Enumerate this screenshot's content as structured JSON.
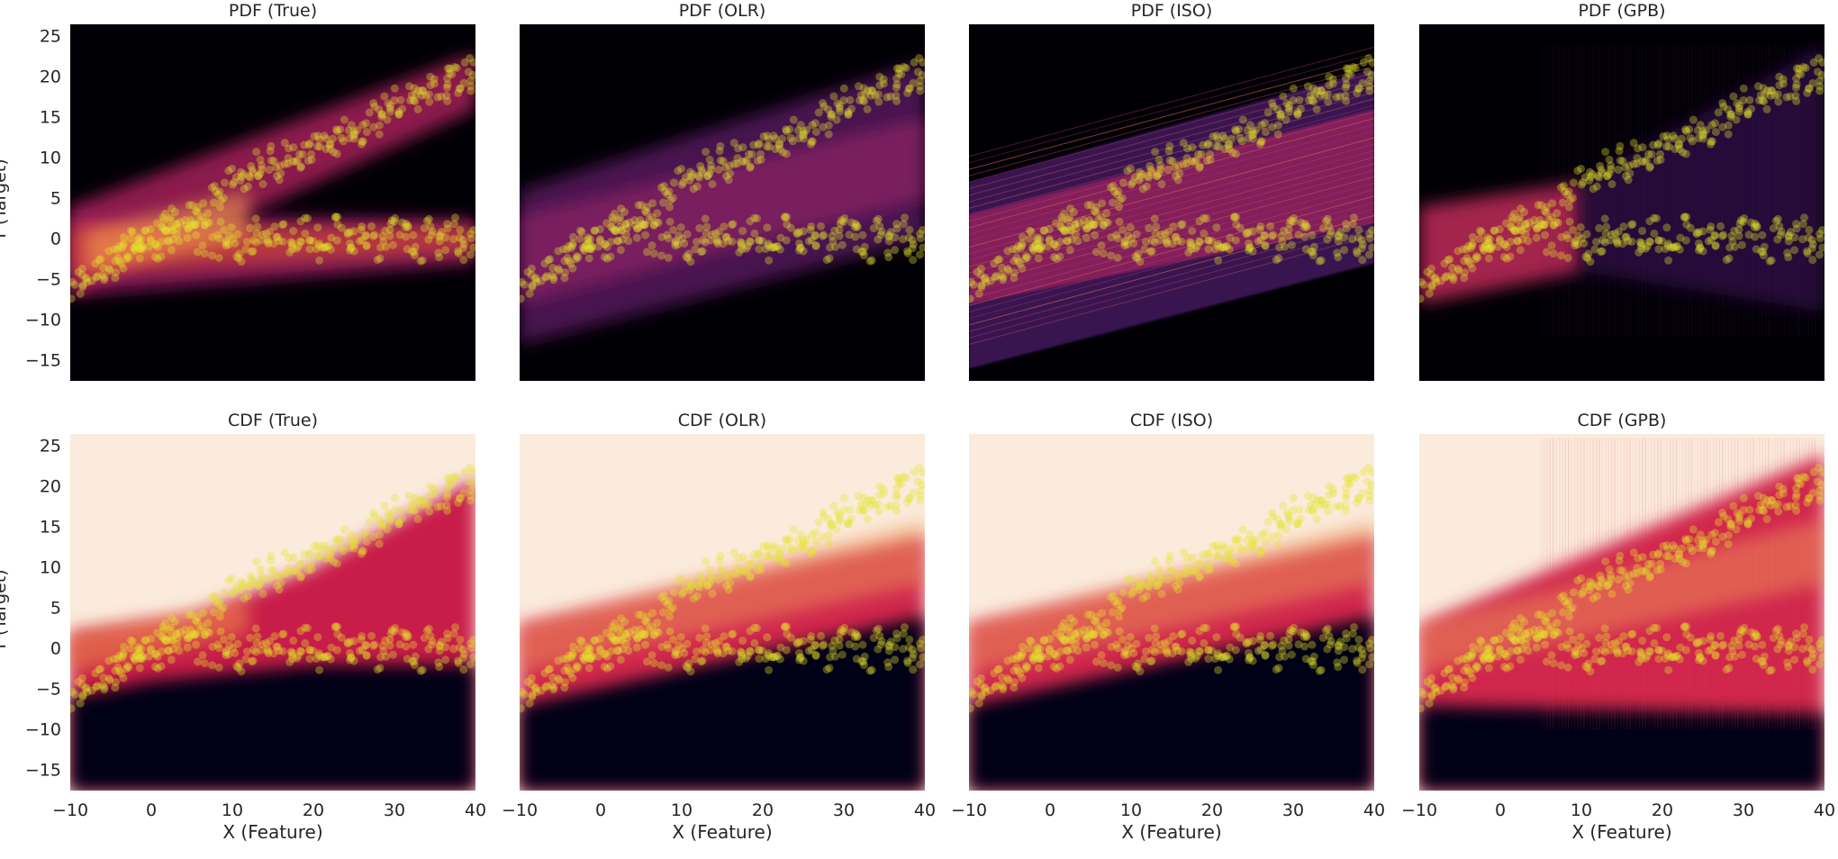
{
  "figure": {
    "xlabel": "X (Feature)",
    "ylabel": "Y (Target)"
  },
  "chart_data": [
    {
      "type": "heatmap",
      "title": "PDF (True)",
      "kind": "pdf",
      "model": "true",
      "xlabel": "",
      "ylabel": "Y (Target)",
      "xlim": [
        -10,
        40
      ],
      "ylim": [
        -17.5,
        26.5
      ],
      "xticks": [
        "",
        "",
        "",
        "",
        "",
        ""
      ],
      "yticks": [
        "25",
        "20",
        "15",
        "10",
        "5",
        "0",
        "−5",
        "−10",
        "−15"
      ],
      "colormap": "inferno",
      "grid": false
    },
    {
      "type": "heatmap",
      "title": "PDF (OLR)",
      "kind": "pdf",
      "model": "olr",
      "xlabel": "",
      "ylabel": "",
      "xlim": [
        -10,
        40
      ],
      "ylim": [
        -17.5,
        26.5
      ],
      "xticks": [
        "",
        "",
        "",
        "",
        "",
        ""
      ],
      "yticks": [],
      "colormap": "inferno",
      "grid": false
    },
    {
      "type": "heatmap",
      "title": "PDF (ISO)",
      "kind": "pdf",
      "model": "iso",
      "xlabel": "",
      "ylabel": "",
      "xlim": [
        -10,
        40
      ],
      "ylim": [
        -17.5,
        26.5
      ],
      "xticks": [
        "",
        "",
        "",
        "",
        "",
        ""
      ],
      "yticks": [],
      "colormap": "inferno",
      "grid": false
    },
    {
      "type": "heatmap",
      "title": "PDF (GPB)",
      "kind": "pdf",
      "model": "gpb",
      "xlabel": "",
      "ylabel": "",
      "xlim": [
        -10,
        40
      ],
      "ylim": [
        -17.5,
        26.5
      ],
      "xticks": [
        "",
        "",
        "",
        "",
        "",
        ""
      ],
      "yticks": [],
      "colormap": "inferno",
      "grid": false
    },
    {
      "type": "heatmap",
      "title": "CDF (True)",
      "kind": "cdf",
      "model": "true",
      "xlabel": "X (Feature)",
      "ylabel": "Y (Target)",
      "xlim": [
        -10,
        40
      ],
      "ylim": [
        -17.5,
        26.5
      ],
      "xticks": [
        "−10",
        "0",
        "10",
        "20",
        "30",
        "40"
      ],
      "yticks": [
        "25",
        "20",
        "15",
        "10",
        "5",
        "0",
        "−5",
        "−10",
        "−15"
      ],
      "colormap": "rocket",
      "grid": false
    },
    {
      "type": "heatmap",
      "title": "CDF (OLR)",
      "kind": "cdf",
      "model": "olr",
      "xlabel": "X (Feature)",
      "ylabel": "",
      "xlim": [
        -10,
        40
      ],
      "ylim": [
        -17.5,
        26.5
      ],
      "xticks": [
        "−10",
        "0",
        "10",
        "20",
        "30",
        "40"
      ],
      "yticks": [],
      "colormap": "rocket",
      "grid": false
    },
    {
      "type": "heatmap",
      "title": "CDF (ISO)",
      "kind": "cdf",
      "model": "iso",
      "xlabel": "X (Feature)",
      "ylabel": "",
      "xlim": [
        -10,
        40
      ],
      "ylim": [
        -17.5,
        26.5
      ],
      "xticks": [
        "−10",
        "0",
        "10",
        "20",
        "30",
        "40"
      ],
      "yticks": [],
      "colormap": "rocket",
      "grid": false
    },
    {
      "type": "heatmap",
      "title": "CDF (GPB)",
      "kind": "cdf",
      "model": "gpb",
      "xlabel": "X (Feature)",
      "ylabel": "",
      "xlim": [
        -10,
        40
      ],
      "ylim": [
        -17.5,
        26.5
      ],
      "xticks": [
        "−10",
        "0",
        "10",
        "20",
        "30",
        "40"
      ],
      "yticks": [],
      "colormap": "rocket",
      "grid": false
    }
  ],
  "scatter_overlay": {
    "type": "scatter",
    "color": "#e6e62a",
    "opacity": 0.35,
    "upper_branch": {
      "x": [
        -8,
        -6,
        -4,
        -3,
        -2,
        -1,
        0,
        1,
        2,
        3,
        4,
        5,
        6,
        7,
        8,
        9,
        10,
        11,
        12,
        13,
        14,
        15,
        16,
        17,
        18,
        19,
        20,
        21,
        22,
        23,
        24,
        25,
        26,
        27,
        28,
        29,
        30,
        31,
        32,
        33,
        34,
        35,
        36,
        37,
        38,
        39,
        40
      ],
      "y": [
        -5,
        -3.5,
        -2.5,
        -1.5,
        -0.5,
        0.5,
        0,
        1,
        1.5,
        2,
        1,
        3,
        4,
        3.5,
        5,
        5.5,
        7,
        6.5,
        8,
        9,
        8.5,
        10,
        9,
        11,
        10.5,
        10,
        11,
        12,
        11.5,
        12,
        13,
        14,
        13.5,
        15,
        14.5,
        16,
        17,
        16,
        18,
        17,
        18.5,
        19,
        18,
        20,
        19.5,
        21,
        20
      ],
      "spread": 1.8
    },
    "lower_branch": {
      "x": [
        -10,
        -9,
        -7,
        -5,
        -4,
        -2,
        -1,
        1,
        2,
        3,
        5,
        6,
        8,
        9,
        10,
        11,
        12,
        13,
        14,
        15,
        16,
        17,
        18,
        19,
        20,
        21,
        22,
        23,
        24,
        25,
        26,
        27,
        28,
        29,
        30,
        31,
        32,
        33,
        34,
        35,
        36,
        37,
        38,
        39,
        40
      ],
      "y": [
        -6,
        -5,
        -4,
        -3,
        -2,
        -1,
        0,
        -1,
        1,
        0,
        1,
        0,
        -1,
        1,
        0,
        -1,
        0,
        1,
        -1,
        0,
        1,
        -0.5,
        0,
        1,
        0.5,
        -1,
        0,
        1,
        0,
        -0.5,
        1,
        0,
        -1,
        0,
        1,
        0.5,
        0,
        -1,
        1,
        0,
        -0.5,
        1,
        0,
        -1,
        0
      ],
      "spread": 1.8
    }
  },
  "colors": {
    "pdf_background": "#000004",
    "cdf_background": "#faebdd",
    "scatter": "#e6e62a",
    "text": "#262626"
  }
}
